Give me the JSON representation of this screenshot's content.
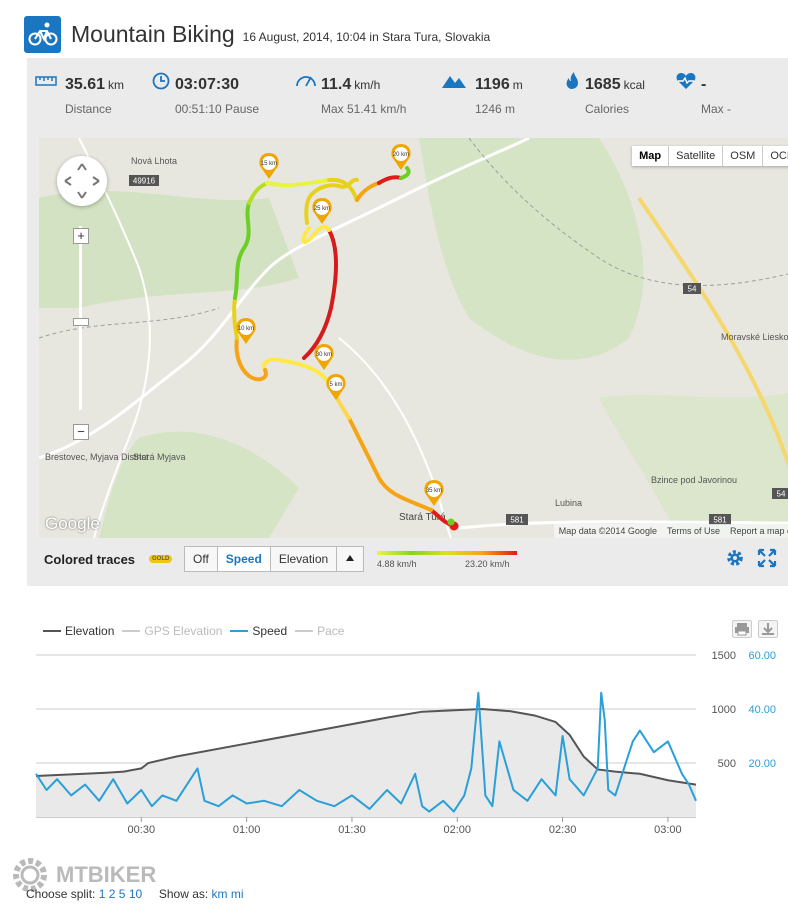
{
  "header": {
    "title": "Mountain Biking",
    "subtitle": "16 August, 2014, 10:04 in Stara Tura, Slovakia"
  },
  "stats": [
    {
      "icon": "ruler-icon",
      "value": "35.61",
      "unit": "km",
      "label": "Distance"
    },
    {
      "icon": "clock-icon",
      "value": "03:07:30",
      "unit": "",
      "label": "00:51:10 Pause"
    },
    {
      "icon": "speedometer-icon",
      "value": "11.4",
      "unit": "km/h",
      "label": "Max 51.41 km/h"
    },
    {
      "icon": "mountain-icon",
      "value": "1196",
      "unit": "m",
      "label": "1246 m"
    },
    {
      "icon": "flame-icon",
      "value": "1685",
      "unit": "kcal",
      "label": "Calories"
    },
    {
      "icon": "heart-pulse-icon",
      "value": "-",
      "unit": "",
      "label": "Max -"
    }
  ],
  "map": {
    "types": [
      "Map",
      "Satellite",
      "OSM",
      "OCM"
    ],
    "selected_type": "Map",
    "logo": "Google",
    "attribution": [
      "Map data ©2014 Google",
      "Terms of Use",
      "Report a map error"
    ],
    "places": [
      "Nová Lhota",
      "Brestovec, Myjava District",
      "Stará Myjava",
      "Moravské Lieskové",
      "Bzince pod Javorinou",
      "Lubina",
      "Stará Turá"
    ],
    "road_labels": [
      "49916",
      "54",
      "54",
      "581",
      "581"
    ],
    "km_markers": [
      "5 km",
      "10 km",
      "15 km",
      "20 km",
      "25 km",
      "30 km",
      "35 km"
    ]
  },
  "controls": {
    "colored_traces_label": "Colored traces",
    "badge": "GOLD",
    "buttons": [
      "Off",
      "Speed",
      "Elevation"
    ],
    "active_button": "Speed",
    "legend_min": "4.88 km/h",
    "legend_max": "23.20 km/h"
  },
  "chart_data": {
    "type": "line",
    "legend": [
      {
        "name": "Elevation",
        "color": "#555555",
        "active": true
      },
      {
        "name": "GPS Elevation",
        "color": "#cccccc",
        "active": false
      },
      {
        "name": "Speed",
        "color": "#2a9fd8",
        "active": true
      },
      {
        "name": "Pace",
        "color": "#cccccc",
        "active": false
      }
    ],
    "x_ticks": [
      "00:30",
      "01:00",
      "01:30",
      "02:00",
      "02:30",
      "03:00"
    ],
    "x_tick_minutes": [
      30,
      60,
      90,
      120,
      150,
      180
    ],
    "x_range_minutes": [
      0,
      188
    ],
    "y_left_ticks": [
      "1500",
      "1000",
      "500"
    ],
    "y_left_range": [
      0,
      1500
    ],
    "y_right_ticks": [
      "60.00",
      "40.00",
      "20.00"
    ],
    "y_right_range": [
      0,
      60
    ],
    "series": [
      {
        "name": "Elevation",
        "x": [
          0,
          10,
          20,
          25,
          30,
          32,
          40,
          60,
          80,
          100,
          110,
          120,
          127,
          135,
          142,
          148,
          152,
          156,
          160,
          165,
          172,
          180,
          188
        ],
        "values": [
          380,
          395,
          410,
          420,
          450,
          500,
          560,
          680,
          800,
          920,
          975,
          990,
          1000,
          980,
          940,
          880,
          760,
          560,
          440,
          420,
          400,
          340,
          300
        ]
      },
      {
        "name": "Speed",
        "x": [
          0,
          3,
          6,
          10,
          14,
          18,
          22,
          26,
          30,
          33,
          36,
          40,
          44,
          46,
          48,
          52,
          56,
          60,
          65,
          70,
          75,
          80,
          85,
          90,
          95,
          100,
          104,
          108,
          110,
          112,
          116,
          119,
          122,
          124,
          126,
          128,
          130,
          132,
          136,
          140,
          144,
          148,
          150,
          152,
          156,
          160,
          161,
          162,
          163,
          165,
          170,
          172,
          176,
          180,
          184,
          186,
          188
        ],
        "values": [
          16,
          10,
          14,
          8,
          12,
          6,
          14,
          5,
          10,
          4,
          8,
          6,
          14,
          18,
          6,
          4,
          8,
          5,
          6,
          4,
          10,
          6,
          4,
          8,
          3,
          10,
          5,
          16,
          4,
          2,
          6,
          2,
          8,
          18,
          46,
          8,
          4,
          28,
          10,
          6,
          14,
          8,
          30,
          14,
          8,
          18,
          46,
          36,
          10,
          8,
          28,
          32,
          24,
          28,
          16,
          12,
          6
        ]
      }
    ]
  },
  "footer": {
    "split_label": "Choose split:",
    "split_options": [
      "1",
      "2",
      "5",
      "10"
    ],
    "show_label": "Show as:",
    "show_options": [
      "km",
      "mi"
    ],
    "brand": "MTBIKER"
  }
}
